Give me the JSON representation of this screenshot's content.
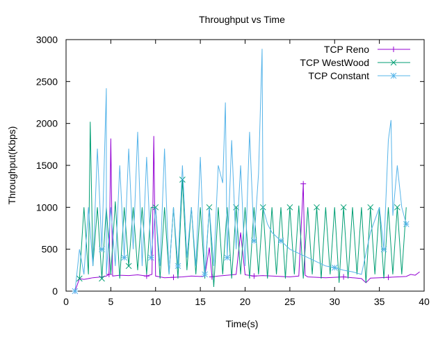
{
  "chart_data": {
    "type": "line",
    "title": "Throughput vs Time",
    "xlabel": "Time(s)",
    "ylabel": "Throughput(Kbps)",
    "xlim": [
      0,
      40
    ],
    "ylim": [
      0,
      3000
    ],
    "x_ticks": [
      "0",
      "5",
      "10",
      "15",
      "20",
      "25",
      "30",
      "35",
      "40"
    ],
    "y_ticks": [
      "0",
      "500",
      "1000",
      "1500",
      "2000",
      "2500",
      "3000"
    ],
    "grid": false,
    "legend_position": "top-right",
    "series": [
      {
        "name": "TCP Reno",
        "color": "#9400d3",
        "marker": "plus",
        "x": [
          1.0,
          1.5,
          2.0,
          3.0,
          4.0,
          4.5,
          4.8,
          5.0,
          5.2,
          6.0,
          7.0,
          8.0,
          9.0,
          9.6,
          9.8,
          10.0,
          10.5,
          11.0,
          12.0,
          13.0,
          14.0,
          15.0,
          15.5,
          16.0,
          16.3,
          17.0,
          18.0,
          19.0,
          19.5,
          20.0,
          21.0,
          22.0,
          23.0,
          24.0,
          25.0,
          26.0,
          26.5,
          26.7,
          27.0,
          28.0,
          29.0,
          30.0,
          31.0,
          32.0,
          33.0,
          33.5,
          34.0,
          35.0,
          36.0,
          37.0,
          38.0,
          38.5,
          39.0,
          39.5
        ],
        "y": [
          0,
          150,
          140,
          160,
          170,
          180,
          200,
          1820,
          180,
          190,
          185,
          195,
          180,
          200,
          1850,
          180,
          170,
          160,
          165,
          170,
          180,
          175,
          180,
          520,
          170,
          180,
          190,
          200,
          700,
          195,
          180,
          185,
          180,
          175,
          170,
          180,
          1280,
          190,
          170,
          165,
          160,
          165,
          170,
          160,
          150,
          100,
          155,
          160,
          165,
          170,
          175,
          200,
          190,
          230
        ]
      },
      {
        "name": "TCP WestWood",
        "color": "#009e73",
        "marker": "x",
        "x": [
          1.5,
          2.0,
          2.5,
          2.7,
          3.0,
          3.5,
          4.0,
          4.5,
          5.0,
          5.5,
          6.0,
          6.5,
          7.0,
          7.5,
          8.0,
          8.5,
          9.0,
          9.5,
          10.0,
          10.5,
          11.0,
          11.5,
          12.0,
          12.5,
          13.0,
          13.5,
          14.0,
          14.5,
          15.0,
          15.5,
          16.0,
          16.5,
          17.0,
          17.5,
          18.0,
          18.5,
          19.0,
          19.5,
          20.0,
          20.5,
          21.0,
          21.5,
          22.0,
          22.5,
          23.0,
          23.5,
          24.0,
          24.5,
          25.0,
          25.5,
          26.0,
          26.5,
          27.0,
          27.5,
          28.0,
          28.5,
          29.0,
          29.5,
          30.0,
          30.5,
          31.0,
          31.5,
          32.0,
          32.5,
          33.0,
          33.5,
          34.0,
          34.5,
          35.0,
          35.5,
          36.0,
          36.5,
          37.0,
          37.5,
          38.0
        ],
        "y": [
          150,
          1000,
          200,
          2020,
          300,
          1000,
          150,
          1000,
          200,
          1070,
          150,
          1000,
          300,
          1000,
          250,
          1000,
          200,
          1000,
          1000,
          150,
          1000,
          200,
          1000,
          150,
          1330,
          250,
          1000,
          200,
          1000,
          150,
          1000,
          50,
          1000,
          200,
          1000,
          150,
          1000,
          200,
          1000,
          150,
          1000,
          200,
          1000,
          150,
          1000,
          200,
          1000,
          150,
          1000,
          200,
          1020,
          150,
          1000,
          200,
          1000,
          150,
          1000,
          200,
          1000,
          100,
          1000,
          150,
          1000,
          200,
          1000,
          100,
          1000,
          200,
          1000,
          150,
          1000,
          200,
          1000,
          200,
          1000
        ]
      },
      {
        "name": "TCP Constant",
        "color": "#56b4e9",
        "marker": "star",
        "x": [
          1.0,
          1.5,
          2.0,
          2.5,
          3.0,
          3.5,
          4.0,
          4.5,
          4.5,
          5.0,
          5.5,
          6.0,
          6.5,
          7.0,
          7.5,
          8.0,
          8.5,
          9.0,
          9.5,
          10.0,
          10.5,
          11.0,
          11.5,
          12.0,
          12.5,
          13.0,
          13.5,
          14.0,
          14.5,
          15.0,
          15.5,
          16.0,
          16.5,
          17.0,
          17.5,
          17.8,
          18.0,
          18.5,
          19.0,
          19.5,
          20.0,
          20.5,
          21.0,
          21.5,
          21.9,
          22.0,
          22.5,
          23.0,
          24.0,
          25.0,
          26.0,
          27.0,
          28.0,
          29.0,
          30.0,
          31.0,
          32.0,
          33.0,
          34.0,
          35.0,
          35.5,
          36.0,
          36.3,
          36.5,
          37.0,
          37.5,
          38.0
        ],
        "y": [
          0,
          500,
          200,
          1000,
          300,
          1700,
          500,
          2420,
          200,
          1000,
          300,
          1500,
          400,
          1700,
          500,
          1900,
          300,
          1600,
          400,
          1000,
          300,
          1700,
          200,
          1000,
          300,
          1500,
          400,
          1000,
          300,
          1600,
          200,
          1000,
          300,
          1500,
          1290,
          2250,
          400,
          1800,
          500,
          1500,
          300,
          1900,
          600,
          1400,
          2890,
          1000,
          800,
          700,
          600,
          500,
          450,
          400,
          350,
          300,
          280,
          250,
          230,
          200,
          700,
          1000,
          500,
          1800,
          2040,
          900,
          1500,
          1000,
          800
        ]
      }
    ]
  }
}
